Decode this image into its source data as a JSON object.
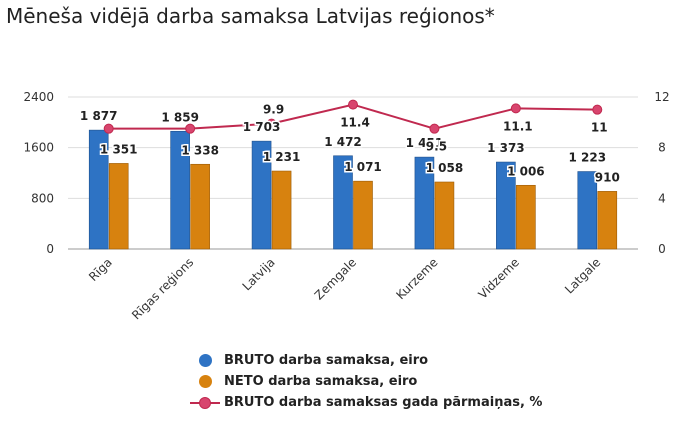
{
  "chart_data": {
    "type": "bar",
    "title": "Mēneša vidējā darba samaksa Latvijas reģionos*",
    "categories": [
      "Rīga",
      "Rīgas reģions",
      "Latvija",
      "Zemgale",
      "Kurzeme",
      "Vidzeme",
      "Latgale"
    ],
    "series": [
      {
        "name": "BRUTO darba samaksa, eiro",
        "type": "bar",
        "axis": "left",
        "color": "#2e73c4",
        "values": [
          1877,
          1859,
          1703,
          1472,
          1451,
          1373,
          1223
        ],
        "labels": [
          "1 877",
          "1 859",
          "1 703",
          "1 472",
          "1 451",
          "1 373",
          "1 223"
        ]
      },
      {
        "name": "NETO darba samaksa, eiro",
        "type": "bar",
        "axis": "left",
        "color": "#d7820f",
        "values": [
          1351,
          1338,
          1231,
          1071,
          1058,
          1006,
          910
        ],
        "labels": [
          "1 351",
          "1 338",
          "1 231",
          "1 071",
          "1 058",
          "1 006",
          "910"
        ]
      },
      {
        "name": "BRUTO darba samaksas gada pārmaiņas, %",
        "type": "line",
        "axis": "right",
        "color": "#c0294f",
        "values": [
          9.5,
          9.5,
          9.9,
          11.4,
          9.5,
          11.1,
          11
        ],
        "labels": [
          "",
          "",
          "9.9",
          "11.4",
          "9.5",
          "11.1",
          "11"
        ]
      }
    ],
    "y_left": {
      "min": 0,
      "max": 2400,
      "ticks": [
        "0",
        "800",
        "1600",
        "2400"
      ],
      "tick_values": [
        0,
        800,
        1600,
        2400
      ]
    },
    "y_right": {
      "min": 0,
      "max": 12,
      "ticks": [
        "0",
        "4",
        "8",
        "12"
      ],
      "tick_values": [
        0,
        4,
        8,
        12
      ]
    },
    "grid": true,
    "legend_position": "bottom"
  }
}
